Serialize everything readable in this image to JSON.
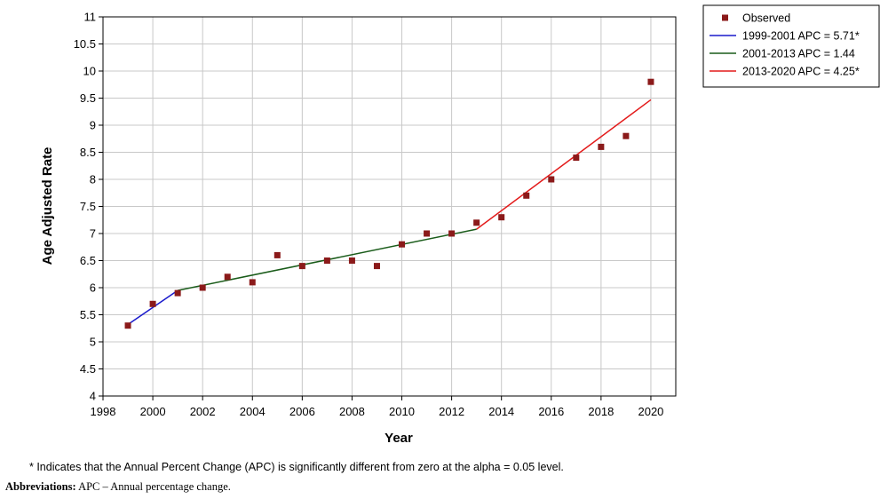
{
  "chart_data": {
    "type": "scatter",
    "xlabel": "Year",
    "ylabel": "Age Adjusted Rate",
    "xlim": [
      1998,
      2021
    ],
    "ylim": [
      4,
      11
    ],
    "x_ticks": [
      "1998",
      "2000",
      "2002",
      "2004",
      "2006",
      "2008",
      "2010",
      "2012",
      "2014",
      "2016",
      "2018",
      "2020"
    ],
    "y_ticks": [
      "4",
      "4.5",
      "5",
      "5.5",
      "6",
      "6.5",
      "7",
      "7.5",
      "8",
      "8.5",
      "9",
      "9.5",
      "10",
      "10.5",
      "11"
    ],
    "grid": true,
    "legend_position": "top-right",
    "series": [
      {
        "name": "Observed",
        "kind": "points",
        "color": "#8b1a1a",
        "x": [
          1999,
          2000,
          2001,
          2002,
          2003,
          2004,
          2005,
          2006,
          2007,
          2008,
          2009,
          2010,
          2011,
          2012,
          2013,
          2014,
          2015,
          2016,
          2017,
          2018,
          2019,
          2020
        ],
        "y": [
          5.3,
          5.7,
          5.9,
          6.0,
          6.2,
          6.1,
          6.6,
          6.4,
          6.5,
          6.5,
          6.4,
          6.8,
          7.0,
          7.0,
          7.2,
          7.3,
          7.7,
          8.0,
          8.4,
          8.6,
          8.8,
          9.8
        ]
      },
      {
        "name": "1999-2001 APC  = 5.71*",
        "kind": "line",
        "color": "#1a1acc",
        "x": [
          1999,
          2001
        ],
        "y": [
          5.32,
          5.95
        ]
      },
      {
        "name": "2001-2013 APC  = 1.44",
        "kind": "line",
        "color": "#1a5c1a",
        "x": [
          2001,
          2013
        ],
        "y": [
          5.95,
          7.08
        ]
      },
      {
        "name": "2013-2020 APC  = 4.25*",
        "kind": "line",
        "color": "#e31a1a",
        "x": [
          2013,
          2020
        ],
        "y": [
          7.08,
          9.47
        ]
      }
    ]
  },
  "footnote": "* Indicates that the Annual Percent Change (APC) is significantly different from zero at the alpha = 0.05 level.",
  "abbreviations": {
    "label": "Abbreviations:",
    "text": " APC – Annual percentage change."
  }
}
